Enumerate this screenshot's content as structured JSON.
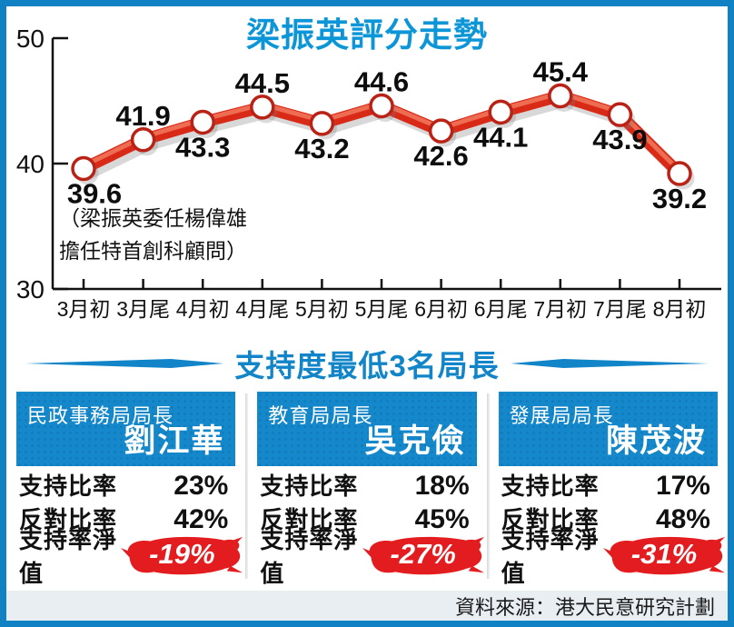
{
  "chart_data": {
    "type": "line",
    "title": "梁振英評分走勢",
    "x": [
      "3月初",
      "3月尾",
      "4月初",
      "4月尾",
      "5月初",
      "5月尾",
      "6月初",
      "6月尾",
      "7月初",
      "7月尾",
      "8月初"
    ],
    "values": [
      39.6,
      41.9,
      43.3,
      44.5,
      43.2,
      44.6,
      42.6,
      44.1,
      45.4,
      43.9,
      39.2
    ],
    "ylim": [
      30,
      50
    ],
    "yticks": [
      30,
      40,
      50
    ],
    "label_side": [
      "below",
      "above",
      "below",
      "above",
      "below",
      "above",
      "below",
      "below",
      "above",
      "below",
      "below"
    ],
    "annotation": "（梁振英委任楊偉雄\n擔任特首創科顧問）",
    "grid": false,
    "legend": "none",
    "line_color": "#d92917",
    "line_highlight_color": "#f1785c",
    "marker_ring_color": "#b92215"
  },
  "section": {
    "title": "支持度最低3名局長"
  },
  "cards": [
    {
      "post": "民政事務局局長",
      "name": "劉江華",
      "support_label": "支持比率",
      "support_value": "23%",
      "oppose_label": "反對比率",
      "oppose_value": "42%",
      "net_label": "支持率淨值",
      "net_value": "-19%"
    },
    {
      "post": "教育局局長",
      "name": "吳克儉",
      "support_label": "支持比率",
      "support_value": "18%",
      "oppose_label": "反對比率",
      "oppose_value": "45%",
      "net_label": "支持率淨值",
      "net_value": "-27%"
    },
    {
      "post": "發展局局長",
      "name": "陳茂波",
      "support_label": "支持比率",
      "support_value": "17%",
      "oppose_label": "反對比率",
      "oppose_value": "48%",
      "net_label": "支持率淨值",
      "net_value": "-31%"
    }
  ],
  "footer": {
    "source": "資料來源：港大民意研究計劃"
  },
  "colors": {
    "frame_blue": "#1082c4",
    "title_blue": "#0c96d8",
    "section_blue": "#1285c8",
    "header_blue": "#1488ca",
    "line_red": "#d92917",
    "badge_red": "#e31c1f",
    "footer_band": "#e9eef3"
  }
}
